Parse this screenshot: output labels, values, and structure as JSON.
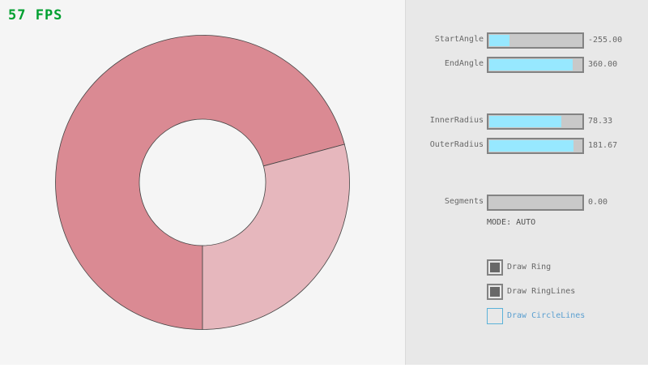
{
  "fps": "57 FPS",
  "ring": {
    "fill_color": "#da8a93",
    "overlap_color": "#e6b7bd",
    "line_color": "#444444"
  },
  "sliders": [
    {
      "label": "StartAngle",
      "value": "-255.00",
      "fraction": 0.217
    },
    {
      "label": "EndAngle",
      "value": "360.00",
      "fraction": 0.9
    },
    {
      "label": "InnerRadius",
      "value": "78.33",
      "fraction": 0.783
    },
    {
      "label": "OuterRadius",
      "value": "181.67",
      "fraction": 0.908
    },
    {
      "label": "Segments",
      "value": "0.00",
      "fraction": 0
    }
  ],
  "mode": "MODE: AUTO",
  "checkboxes": [
    {
      "label": "Draw Ring",
      "checked": true
    },
    {
      "label": "Draw RingLines",
      "checked": true
    },
    {
      "label": "Draw CircleLines",
      "checked": false
    }
  ]
}
